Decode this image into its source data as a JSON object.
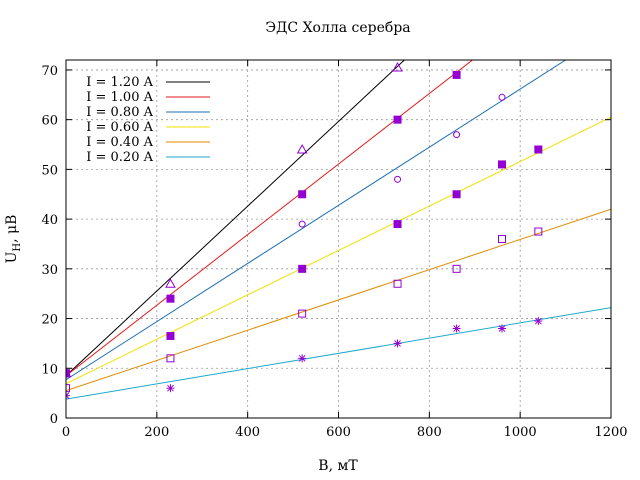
{
  "chart_data": {
    "type": "scatter",
    "title": "ЭДС Холла серебра",
    "xlabel": "B, мТ",
    "ylabel_main": "U",
    "ylabel_sub": "H",
    "ylabel_unit": ", μB",
    "xlim": [
      0,
      1200
    ],
    "ylim": [
      0,
      72
    ],
    "xticks": [
      0,
      200,
      400,
      600,
      800,
      1000,
      1200
    ],
    "yticks": [
      0,
      10,
      20,
      30,
      40,
      50,
      60,
      70
    ],
    "grid": true,
    "legend_position": "top-left",
    "series": [
      {
        "name": "I = 1.20 A",
        "color": "#000000",
        "marker_color": "#9400d3",
        "marker": "triangle-open",
        "points": [
          [
            0,
            9
          ],
          [
            230,
            27
          ],
          [
            520,
            54
          ],
          [
            730,
            70.5
          ]
        ],
        "fit": {
          "x": [
            0,
            745
          ],
          "y": [
            8.5,
            72
          ]
        }
      },
      {
        "name": "I = 1.00 A",
        "color": "#e31a1c",
        "marker_color": "#9400d3",
        "marker": "square-filled",
        "points": [
          [
            0,
            9
          ],
          [
            230,
            24
          ],
          [
            520,
            45
          ],
          [
            730,
            60
          ],
          [
            860,
            69
          ]
        ],
        "fit": {
          "x": [
            0,
            895
          ],
          "y": [
            8.5,
            72
          ]
        }
      },
      {
        "name": "I = 0.80 A",
        "color": "#1f6fb4",
        "marker_color": "#9400d3",
        "marker": "circle-open",
        "points": [
          [
            0,
            9
          ],
          [
            520,
            39
          ],
          [
            730,
            48
          ],
          [
            860,
            57
          ],
          [
            960,
            64.5
          ]
        ],
        "fit": {
          "x": [
            0,
            1100
          ],
          "y": [
            7.7,
            72
          ]
        }
      },
      {
        "name": "I = 0.60 A",
        "color": "#f0e000",
        "marker_color": "#9400d3",
        "marker": "square-filled",
        "points": [
          [
            0,
            9
          ],
          [
            230,
            16.5
          ],
          [
            520,
            30
          ],
          [
            730,
            39
          ],
          [
            860,
            45
          ],
          [
            960,
            51
          ],
          [
            1040,
            54
          ]
        ],
        "fit": {
          "x": [
            0,
            1200
          ],
          "y": [
            6.9,
            60.5
          ]
        }
      },
      {
        "name": "I = 0.40 A",
        "color": "#e08a00",
        "marker_color": "#9400d3",
        "marker": "square-open",
        "points": [
          [
            0,
            6
          ],
          [
            230,
            12
          ],
          [
            520,
            21
          ],
          [
            730,
            27
          ],
          [
            860,
            30
          ],
          [
            960,
            36
          ],
          [
            1040,
            37.5
          ]
        ],
        "fit": {
          "x": [
            0,
            1200
          ],
          "y": [
            5.5,
            42
          ]
        }
      },
      {
        "name": "I = 0.20 A",
        "color": "#1ea8cc",
        "marker_color": "#9400d3",
        "marker": "star",
        "points": [
          [
            0,
            4.5
          ],
          [
            230,
            6
          ],
          [
            520,
            12
          ],
          [
            730,
            15
          ],
          [
            860,
            18
          ],
          [
            960,
            18
          ],
          [
            1040,
            19.5
          ]
        ],
        "fit": {
          "x": [
            0,
            1200
          ],
          "y": [
            3.8,
            22.2
          ]
        }
      }
    ]
  }
}
